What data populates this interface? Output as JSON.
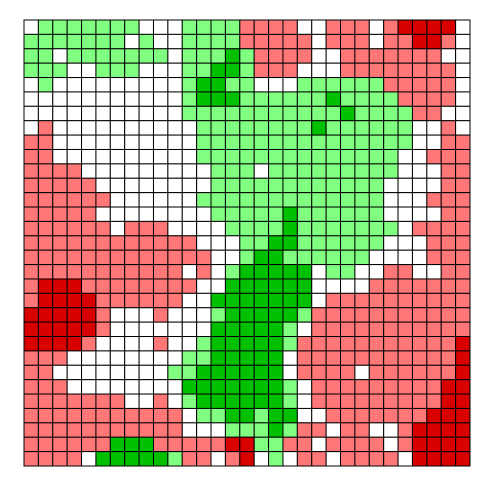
{
  "palette": [
    "#ffffff",
    "#80ff80",
    "#00c000",
    "#ff7777",
    "#d90000"
  ],
  "grid": [
    [
      0,
      1,
      1,
      1,
      1,
      1,
      1,
      1,
      0,
      0,
      0,
      1,
      1,
      1,
      1,
      3,
      3,
      3,
      3,
      0,
      0,
      3,
      3,
      3,
      0,
      3,
      4,
      4,
      4,
      4,
      0
    ],
    [
      1,
      1,
      1,
      1,
      1,
      1,
      1,
      0,
      1,
      0,
      0,
      1,
      1,
      1,
      1,
      3,
      3,
      3,
      3,
      3,
      0,
      3,
      3,
      3,
      0,
      3,
      3,
      4,
      4,
      3,
      0
    ],
    [
      1,
      1,
      0,
      1,
      1,
      1,
      1,
      1,
      1,
      1,
      0,
      1,
      1,
      1,
      2,
      1,
      3,
      3,
      3,
      3,
      0,
      0,
      3,
      3,
      3,
      3,
      3,
      3,
      3,
      0,
      0
    ],
    [
      1,
      1,
      1,
      0,
      0,
      1,
      1,
      1,
      0,
      0,
      0,
      1,
      1,
      2,
      2,
      1,
      3,
      3,
      3,
      0,
      0,
      0,
      3,
      3,
      3,
      3,
      3,
      3,
      3,
      3,
      0
    ],
    [
      0,
      1,
      0,
      0,
      0,
      0,
      0,
      0,
      0,
      0,
      0,
      1,
      2,
      2,
      1,
      1,
      0,
      0,
      0,
      1,
      1,
      1,
      1,
      1,
      1,
      3,
      3,
      3,
      3,
      3,
      0
    ],
    [
      0,
      0,
      0,
      0,
      0,
      0,
      0,
      0,
      0,
      0,
      0,
      1,
      2,
      2,
      2,
      1,
      1,
      1,
      1,
      1,
      1,
      2,
      1,
      1,
      1,
      1,
      3,
      3,
      3,
      3,
      0
    ],
    [
      0,
      0,
      0,
      0,
      0,
      0,
      0,
      0,
      0,
      0,
      0,
      1,
      1,
      1,
      1,
      1,
      1,
      1,
      1,
      1,
      1,
      1,
      2,
      1,
      1,
      1,
      1,
      3,
      3,
      0,
      0
    ],
    [
      0,
      3,
      0,
      0,
      0,
      0,
      0,
      0,
      0,
      0,
      0,
      0,
      1,
      1,
      1,
      1,
      1,
      1,
      1,
      1,
      2,
      1,
      1,
      1,
      1,
      1,
      1,
      0,
      0,
      3,
      0
    ],
    [
      3,
      3,
      0,
      0,
      0,
      0,
      0,
      0,
      0,
      0,
      0,
      0,
      1,
      1,
      1,
      1,
      1,
      1,
      1,
      1,
      1,
      1,
      1,
      1,
      1,
      1,
      1,
      0,
      0,
      3,
      3
    ],
    [
      3,
      3,
      0,
      0,
      0,
      0,
      0,
      0,
      0,
      0,
      0,
      0,
      1,
      1,
      1,
      1,
      1,
      1,
      1,
      1,
      1,
      1,
      1,
      1,
      1,
      1,
      0,
      0,
      3,
      3,
      3
    ],
    [
      3,
      3,
      3,
      3,
      0,
      0,
      0,
      0,
      0,
      0,
      0,
      0,
      0,
      1,
      1,
      1,
      0,
      1,
      1,
      1,
      1,
      1,
      1,
      1,
      1,
      1,
      0,
      0,
      0,
      3,
      3
    ],
    [
      3,
      3,
      3,
      3,
      3,
      0,
      0,
      0,
      0,
      0,
      0,
      0,
      0,
      1,
      1,
      1,
      1,
      1,
      1,
      1,
      1,
      1,
      1,
      1,
      1,
      0,
      0,
      0,
      0,
      3,
      3
    ],
    [
      3,
      3,
      3,
      3,
      3,
      3,
      0,
      0,
      0,
      0,
      0,
      0,
      1,
      1,
      1,
      1,
      1,
      1,
      1,
      1,
      1,
      1,
      1,
      1,
      1,
      0,
      0,
      0,
      3,
      3,
      3
    ],
    [
      3,
      3,
      3,
      3,
      3,
      0,
      0,
      0,
      0,
      0,
      0,
      0,
      0,
      1,
      1,
      1,
      1,
      1,
      2,
      1,
      1,
      1,
      1,
      1,
      1,
      0,
      0,
      0,
      0,
      3,
      3
    ],
    [
      3,
      3,
      3,
      3,
      3,
      3,
      0,
      3,
      3,
      3,
      0,
      0,
      0,
      0,
      1,
      1,
      1,
      1,
      2,
      1,
      1,
      1,
      1,
      1,
      1,
      1,
      0,
      3,
      3,
      3,
      3
    ],
    [
      3,
      3,
      3,
      3,
      3,
      3,
      3,
      3,
      3,
      3,
      3,
      3,
      0,
      0,
      0,
      1,
      1,
      2,
      2,
      1,
      1,
      1,
      1,
      1,
      1,
      0,
      0,
      0,
      3,
      3,
      3
    ],
    [
      3,
      3,
      3,
      3,
      3,
      3,
      3,
      3,
      3,
      3,
      3,
      3,
      3,
      0,
      0,
      1,
      2,
      2,
      1,
      1,
      1,
      1,
      1,
      1,
      0,
      0,
      0,
      0,
      3,
      3,
      3
    ],
    [
      3,
      3,
      3,
      3,
      3,
      3,
      3,
      3,
      3,
      3,
      3,
      0,
      3,
      0,
      1,
      2,
      2,
      2,
      2,
      2,
      0,
      1,
      1,
      0,
      0,
      3,
      3,
      0,
      0,
      3,
      3
    ],
    [
      3,
      4,
      4,
      4,
      3,
      3,
      3,
      3,
      3,
      3,
      3,
      3,
      0,
      0,
      2,
      2,
      2,
      2,
      2,
      2,
      0,
      0,
      0,
      0,
      3,
      3,
      3,
      3,
      3,
      3,
      3
    ],
    [
      3,
      4,
      4,
      4,
      4,
      3,
      3,
      3,
      3,
      3,
      3,
      0,
      0,
      2,
      2,
      2,
      2,
      2,
      2,
      2,
      0,
      3,
      3,
      3,
      3,
      3,
      3,
      3,
      3,
      3,
      3
    ],
    [
      4,
      4,
      4,
      4,
      4,
      3,
      0,
      0,
      0,
      3,
      0,
      0,
      0,
      1,
      2,
      2,
      2,
      2,
      2,
      1,
      3,
      3,
      3,
      3,
      3,
      3,
      3,
      3,
      3,
      3,
      3
    ],
    [
      4,
      4,
      4,
      4,
      4,
      3,
      0,
      0,
      0,
      0,
      0,
      0,
      0,
      2,
      2,
      2,
      2,
      2,
      1,
      0,
      3,
      3,
      3,
      3,
      3,
      3,
      3,
      3,
      3,
      3,
      3
    ],
    [
      4,
      4,
      4,
      4,
      3,
      0,
      0,
      0,
      0,
      3,
      0,
      0,
      1,
      2,
      2,
      2,
      2,
      2,
      1,
      3,
      3,
      3,
      3,
      3,
      3,
      3,
      3,
      3,
      3,
      3,
      4
    ],
    [
      3,
      3,
      3,
      0,
      0,
      0,
      0,
      0,
      0,
      0,
      0,
      1,
      1,
      2,
      2,
      2,
      2,
      2,
      0,
      3,
      3,
      3,
      3,
      3,
      3,
      3,
      3,
      3,
      3,
      3,
      4
    ],
    [
      3,
      3,
      0,
      0,
      0,
      0,
      0,
      0,
      0,
      0,
      1,
      1,
      2,
      2,
      2,
      2,
      2,
      2,
      0,
      3,
      3,
      3,
      3,
      0,
      3,
      3,
      3,
      3,
      3,
      3,
      4
    ],
    [
      3,
      3,
      3,
      0,
      0,
      0,
      0,
      0,
      0,
      0,
      0,
      2,
      2,
      2,
      2,
      2,
      2,
      2,
      1,
      0,
      3,
      3,
      3,
      3,
      3,
      3,
      3,
      3,
      3,
      4,
      4
    ],
    [
      3,
      3,
      3,
      3,
      3,
      3,
      3,
      0,
      0,
      3,
      0,
      1,
      2,
      2,
      2,
      2,
      2,
      2,
      1,
      0,
      3,
      3,
      3,
      3,
      3,
      3,
      3,
      3,
      3,
      4,
      4
    ],
    [
      3,
      3,
      3,
      3,
      3,
      3,
      3,
      3,
      3,
      3,
      3,
      0,
      1,
      1,
      2,
      2,
      1,
      2,
      2,
      0,
      0,
      3,
      3,
      3,
      3,
      3,
      3,
      3,
      4,
      4,
      4
    ],
    [
      3,
      3,
      3,
      3,
      3,
      3,
      3,
      3,
      3,
      3,
      3,
      0,
      0,
      0,
      1,
      1,
      1,
      2,
      1,
      3,
      3,
      0,
      3,
      3,
      0,
      0,
      3,
      4,
      4,
      4,
      4
    ],
    [
      3,
      3,
      3,
      3,
      3,
      3,
      2,
      2,
      2,
      3,
      3,
      3,
      3,
      3,
      4,
      4,
      1,
      1,
      3,
      3,
      0,
      3,
      3,
      3,
      3,
      0,
      3,
      4,
      4,
      4,
      4
    ],
    [
      3,
      3,
      3,
      3,
      0,
      2,
      2,
      2,
      2,
      2,
      1,
      3,
      3,
      0,
      3,
      4,
      0,
      1,
      0,
      3,
      3,
      0,
      3,
      3,
      3,
      3,
      0,
      4,
      4,
      4,
      4
    ]
  ]
}
